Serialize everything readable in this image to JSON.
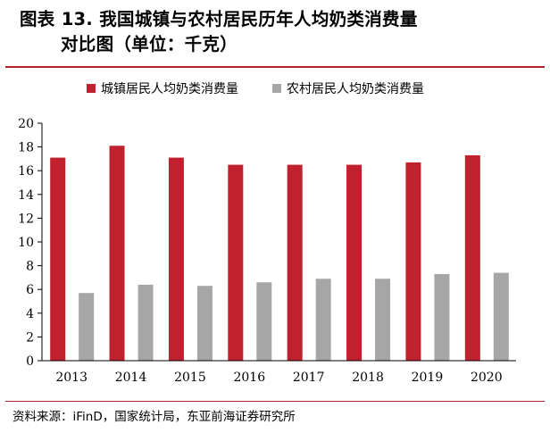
{
  "title": {
    "line1": "图表 13. 我国城镇与农村居民历年人均奶类消费量",
    "line2": "对比图（单位：千克）"
  },
  "source": "资料来源：iFinD，国家统计局，东亚前海证券研究所",
  "colors": {
    "urban": "#c0212e",
    "rural": "#a6a6a6",
    "accent": "#b3202a"
  },
  "chart_data": {
    "type": "bar",
    "categories": [
      "2013",
      "2014",
      "2015",
      "2016",
      "2017",
      "2018",
      "2019",
      "2020"
    ],
    "series": [
      {
        "name": "城镇居民人均奶类消费量",
        "values": [
          17.1,
          18.1,
          17.1,
          16.5,
          16.5,
          16.5,
          16.7,
          17.3
        ]
      },
      {
        "name": "农村居民人均奶类消费量",
        "values": [
          5.7,
          6.4,
          6.3,
          6.6,
          6.9,
          6.9,
          7.3,
          7.4
        ]
      }
    ],
    "yticks": [
      "0",
      "2",
      "4",
      "6",
      "8",
      "10",
      "12",
      "14",
      "16",
      "18",
      "20"
    ],
    "ylim": [
      0,
      20
    ],
    "xlabel": "",
    "ylabel": "",
    "legend_position": "top",
    "grid": false
  }
}
